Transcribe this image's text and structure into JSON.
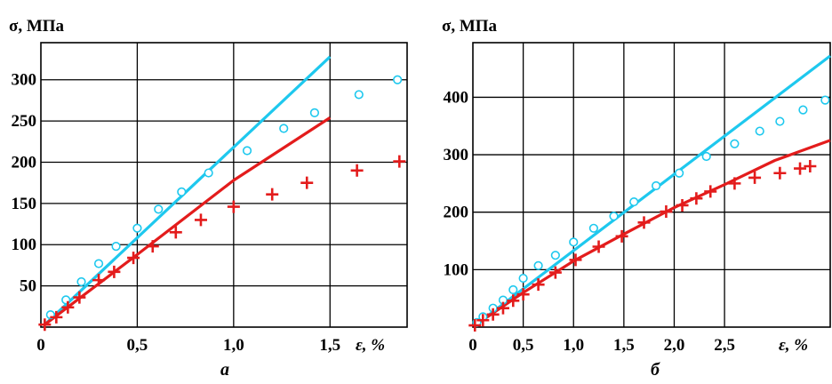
{
  "chart_data": [
    {
      "type": "scatter",
      "panel_label": "а",
      "ylabel": "σ, МПа",
      "xlabel": "ε, %",
      "xlim": [
        0,
        1.9
      ],
      "ylim": [
        0,
        345
      ],
      "x_ticks": [
        {
          "v": 0,
          "t": "0"
        },
        {
          "v": 0.5,
          "t": "0,5"
        },
        {
          "v": 1.0,
          "t": "1,0"
        },
        {
          "v": 1.5,
          "t": "1,5"
        }
      ],
      "y_ticks": [
        {
          "v": 50,
          "t": "50"
        },
        {
          "v": 100,
          "t": "100"
        },
        {
          "v": 150,
          "t": "150"
        },
        {
          "v": 200,
          "t": "200"
        },
        {
          "v": 250,
          "t": "250"
        },
        {
          "v": 300,
          "t": "300"
        }
      ],
      "grid": true,
      "series": [
        {
          "marker": "line",
          "color": "#1ec8ee",
          "points": [
            [
              0.02,
              3
            ],
            [
              1.5,
              328
            ]
          ]
        },
        {
          "marker": "line",
          "color": "#e31c1c",
          "points": [
            [
              0.02,
              3
            ],
            [
              0.5,
              88
            ],
            [
              1.0,
              178
            ],
            [
              1.5,
              254
            ]
          ]
        },
        {
          "marker": "circle",
          "color": "#1ec8ee",
          "points": [
            [
              0.05,
              15
            ],
            [
              0.13,
              33
            ],
            [
              0.21,
              55
            ],
            [
              0.3,
              77
            ],
            [
              0.39,
              98
            ],
            [
              0.5,
              120
            ],
            [
              0.61,
              143
            ],
            [
              0.73,
              164
            ],
            [
              0.87,
              187
            ],
            [
              1.07,
              214
            ],
            [
              1.26,
              241
            ],
            [
              1.42,
              260
            ],
            [
              1.65,
              282
            ],
            [
              1.85,
              300
            ]
          ]
        },
        {
          "marker": "cross",
          "color": "#e31c1c",
          "points": [
            [
              0.02,
              3
            ],
            [
              0.08,
              12
            ],
            [
              0.14,
              24
            ],
            [
              0.2,
              36
            ],
            [
              0.3,
              57
            ],
            [
              0.38,
              67
            ],
            [
              0.48,
              84
            ],
            [
              0.58,
              98
            ],
            [
              0.7,
              115
            ],
            [
              0.83,
              130
            ],
            [
              1.0,
              146
            ],
            [
              1.2,
              161
            ],
            [
              1.38,
              175
            ],
            [
              1.64,
              190
            ],
            [
              1.86,
              201
            ]
          ]
        }
      ]
    },
    {
      "type": "scatter",
      "panel_label": "б",
      "ylabel": "σ, МПа",
      "xlabel": "ε, %",
      "xlim": [
        0,
        3.55
      ],
      "ylim": [
        0,
        495
      ],
      "x_ticks": [
        {
          "v": 0,
          "t": "0"
        },
        {
          "v": 0.5,
          "t": "0,5"
        },
        {
          "v": 1.0,
          "t": "1,0"
        },
        {
          "v": 1.5,
          "t": "1,5"
        },
        {
          "v": 2.0,
          "t": "2,0"
        },
        {
          "v": 2.5,
          "t": "2,5"
        }
      ],
      "y_ticks": [
        {
          "v": 100,
          "t": "100"
        },
        {
          "v": 200,
          "t": "200"
        },
        {
          "v": 300,
          "t": "300"
        },
        {
          "v": 400,
          "t": "400"
        }
      ],
      "grid": true,
      "series": [
        {
          "marker": "line",
          "color": "#1ec8ee",
          "points": [
            [
              0.02,
              3
            ],
            [
              3.55,
              472
            ]
          ]
        },
        {
          "marker": "line",
          "color": "#e31c1c",
          "points": [
            [
              0.02,
              3
            ],
            [
              0.5,
              60
            ],
            [
              1.0,
              115
            ],
            [
              1.5,
              162
            ],
            [
              2.0,
              208
            ],
            [
              2.5,
              248
            ],
            [
              3.0,
              290
            ],
            [
              3.55,
              325
            ]
          ]
        },
        {
          "marker": "circle",
          "color": "#1ec8ee",
          "points": [
            [
              0.04,
              8
            ],
            [
              0.1,
              18
            ],
            [
              0.2,
              33
            ],
            [
              0.3,
              47
            ],
            [
              0.4,
              65
            ],
            [
              0.5,
              85
            ],
            [
              0.65,
              107
            ],
            [
              0.82,
              125
            ],
            [
              1.0,
              148
            ],
            [
              1.2,
              172
            ],
            [
              1.4,
              193
            ],
            [
              1.6,
              218
            ],
            [
              1.82,
              246
            ],
            [
              2.05,
              268
            ],
            [
              2.32,
              297
            ],
            [
              2.6,
              319
            ],
            [
              2.85,
              341
            ],
            [
              3.05,
              358
            ],
            [
              3.28,
              378
            ],
            [
              3.5,
              395
            ]
          ]
        },
        {
          "marker": "cross",
          "color": "#e31c1c",
          "points": [
            [
              0.02,
              3
            ],
            [
              0.1,
              12
            ],
            [
              0.2,
              22
            ],
            [
              0.3,
              33
            ],
            [
              0.4,
              46
            ],
            [
              0.5,
              57
            ],
            [
              0.65,
              74
            ],
            [
              0.82,
              95
            ],
            [
              1.02,
              117
            ],
            [
              1.25,
              140
            ],
            [
              1.48,
              158
            ],
            [
              1.7,
              182
            ],
            [
              1.92,
              201
            ],
            [
              2.08,
              212
            ],
            [
              2.22,
              224
            ],
            [
              2.36,
              236
            ],
            [
              2.6,
              250
            ],
            [
              2.8,
              260
            ],
            [
              3.05,
              268
            ],
            [
              3.25,
              276
            ],
            [
              3.35,
              280
            ]
          ]
        }
      ]
    }
  ]
}
